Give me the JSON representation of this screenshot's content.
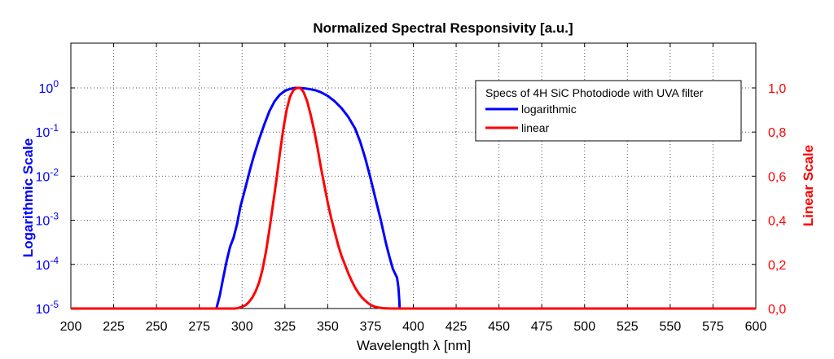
{
  "chart_data": {
    "type": "line",
    "title": "Normalized Spectral Responsivity [a.u.]",
    "xlabel": "Wavelength λ [nm]",
    "ylabel_left": "Logarithmic Scale",
    "ylabel_right": "Linear Scale",
    "xlim": [
      200,
      600
    ],
    "x_ticks": [
      200,
      225,
      250,
      275,
      300,
      325,
      350,
      375,
      400,
      425,
      450,
      475,
      500,
      525,
      550,
      575,
      600
    ],
    "ylim_left": [
      1e-05,
      1
    ],
    "y_scale_left": "log",
    "y_ticks_left": [
      {
        "base": "10",
        "exp": "-5"
      },
      {
        "base": "10",
        "exp": "-4"
      },
      {
        "base": "10",
        "exp": "-3"
      },
      {
        "base": "10",
        "exp": "-2"
      },
      {
        "base": "10",
        "exp": "-1"
      },
      {
        "base": "10",
        "exp": "0"
      }
    ],
    "ylim_right": [
      0,
      1
    ],
    "y_ticks_right": [
      "0,0",
      "0,2",
      "0,4",
      "0,6",
      "0,8",
      "1,0"
    ],
    "grid": true,
    "legend": {
      "title": "Specs of 4H SiC Photodiode with UVA filter",
      "position": "top-right",
      "entries": [
        "logarithmic",
        "linear"
      ]
    },
    "series": [
      {
        "name": "logarithmic",
        "axis": "left",
        "color": "#0000ff",
        "x": [
          285,
          287,
          289,
          291,
          293,
          295,
          297,
          299,
          301,
          303,
          305,
          307,
          310,
          313,
          316,
          319,
          322,
          325,
          328,
          331,
          334,
          337,
          340,
          343,
          346,
          350,
          354,
          358,
          362,
          366,
          369,
          372,
          375,
          378,
          381,
          384,
          386,
          388,
          389.5,
          390.5,
          391.3,
          391.8,
          392
        ],
        "y": [
          1e-05,
          2e-05,
          5e-05,
          0.00012,
          0.00025,
          0.0004,
          0.0008,
          0.002,
          0.004,
          0.008,
          0.016,
          0.03,
          0.07,
          0.15,
          0.3,
          0.5,
          0.7,
          0.86,
          0.95,
          1.0,
          1.0,
          0.97,
          0.93,
          0.88,
          0.8,
          0.66,
          0.5,
          0.35,
          0.22,
          0.12,
          0.06,
          0.025,
          0.009,
          0.003,
          0.001,
          0.0003,
          0.00015,
          8e-05,
          6e-05,
          5e-05,
          3e-05,
          1.5e-05,
          1e-05
        ]
      },
      {
        "name": "linear",
        "axis": "right",
        "color": "#ff0000",
        "x": [
          200,
          296,
          298,
          300,
          302,
          304,
          306,
          308,
          310,
          312,
          314,
          316,
          318,
          320,
          322,
          324,
          326,
          328,
          330,
          332,
          334,
          336,
          338,
          340,
          342,
          344,
          346,
          348,
          350,
          352,
          354,
          356,
          358,
          360,
          362,
          364,
          366,
          368,
          370,
          372,
          374,
          376,
          378,
          380,
          382,
          384,
          386,
          388,
          392,
          400,
          600
        ],
        "y": [
          0,
          0,
          0.003,
          0.008,
          0.015,
          0.03,
          0.05,
          0.08,
          0.12,
          0.18,
          0.26,
          0.36,
          0.47,
          0.58,
          0.7,
          0.81,
          0.9,
          0.96,
          0.99,
          1.0,
          1.0,
          0.98,
          0.94,
          0.88,
          0.81,
          0.73,
          0.64,
          0.56,
          0.48,
          0.41,
          0.35,
          0.29,
          0.24,
          0.2,
          0.16,
          0.125,
          0.095,
          0.07,
          0.05,
          0.035,
          0.022,
          0.013,
          0.007,
          0.004,
          0.002,
          0.001,
          0.0005,
          0,
          0,
          0,
          0
        ]
      }
    ]
  }
}
